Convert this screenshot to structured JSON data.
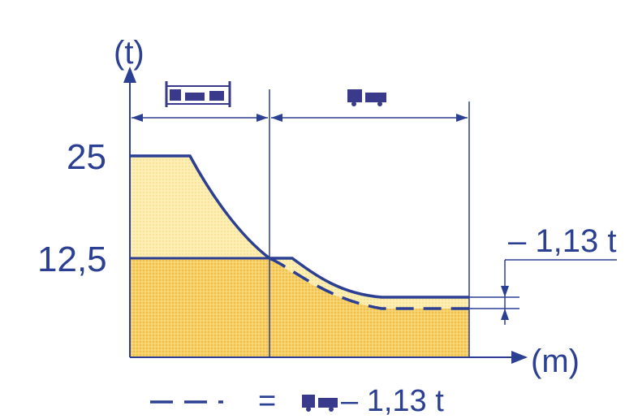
{
  "diagram": {
    "y_unit_label": "(t)",
    "x_unit_label": "(m)",
    "y_tick_top": "25",
    "y_tick_mid": "12,5",
    "offset_label": "– 1,13 t",
    "legend_dash": "— —",
    "legend_eq": "=",
    "legend_suffix": "– 1,13 t"
  },
  "colors": {
    "line": "#2b3f93",
    "fill_light": "#fbe6a0",
    "fill_dark": "#f3c34a",
    "icon": "#3a3a8c"
  },
  "icons": [
    "crane-vehicle-icon-left",
    "crane-vehicle-icon-right",
    "crane-vehicle-icon-legend"
  ]
}
